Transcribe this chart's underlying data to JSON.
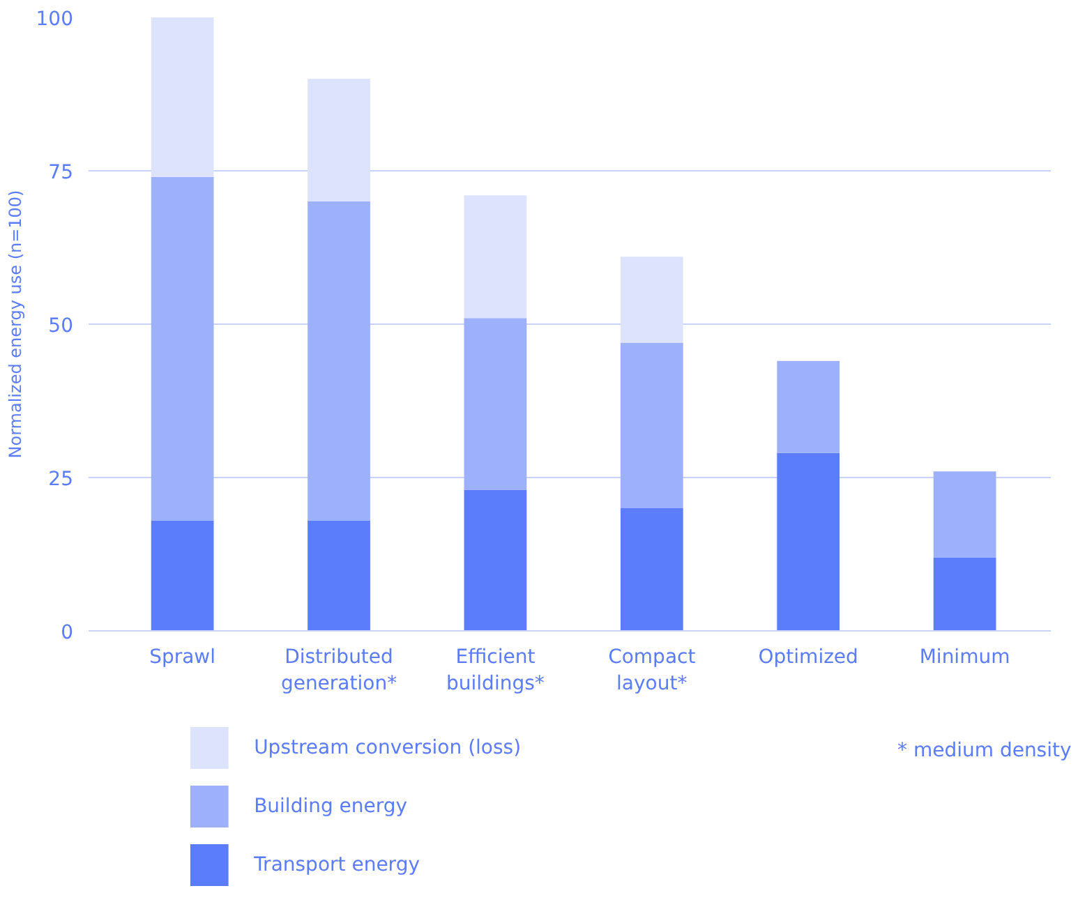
{
  "chart_data": {
    "type": "bar",
    "stacked": true,
    "ylabel": "Normalized energy use (n=100)",
    "categories": [
      "Sprawl",
      "Distributed generation*",
      "Efficient buildings*",
      "Compact layout*",
      "Optimized",
      "Minimum"
    ],
    "series": [
      {
        "name": "Transport energy",
        "color": "#5b7cfb",
        "values": [
          18,
          18,
          23,
          20,
          29,
          12
        ]
      },
      {
        "name": "Building energy",
        "color": "#9db0fb",
        "values": [
          56,
          52,
          28,
          27,
          15,
          14
        ]
      },
      {
        "name": "Upstream conversion (loss)",
        "color": "#dde3fd",
        "values": [
          26,
          20,
          20,
          14,
          null,
          null
        ]
      }
    ],
    "ylim": [
      0,
      100
    ],
    "yticks": [
      0,
      25,
      50,
      75,
      100
    ],
    "grid": "y",
    "legend": "bottom",
    "annotations": [
      "*   medium density"
    ]
  }
}
